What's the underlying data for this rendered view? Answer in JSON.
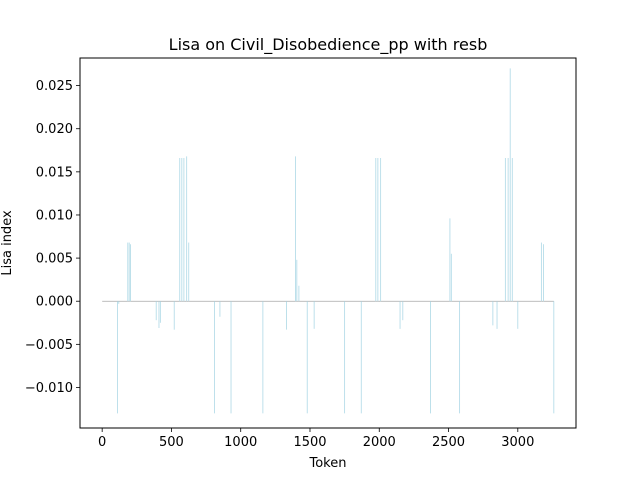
{
  "chart_data": {
    "type": "bar",
    "title": "Lisa on Civil_Disobedience_pp with resb",
    "xlabel": "Token",
    "ylabel": "Lisa index",
    "xlim": [
      -160,
      3420
    ],
    "ylim": [
      -0.0147,
      0.0282
    ],
    "xticks": [
      0,
      500,
      1000,
      1500,
      2000,
      2500,
      3000
    ],
    "xtick_labels": [
      "0",
      "500",
      "1000",
      "1500",
      "2000",
      "2500",
      "3000"
    ],
    "yticks": [
      -0.01,
      -0.005,
      0.0,
      0.005,
      0.01,
      0.015,
      0.02,
      0.025
    ],
    "ytick_labels": [
      "−0.010",
      "−0.005",
      "0.000",
      "0.005",
      "0.010",
      "0.015",
      "0.020",
      "0.025"
    ],
    "grid": false,
    "bar_color": "#add8e6",
    "baseline_color": "#a8a8a8",
    "points": [
      [
        110,
        -0.013
      ],
      [
        120,
        -0.0003
      ],
      [
        185,
        0.0068
      ],
      [
        195,
        0.0068
      ],
      [
        205,
        0.0066
      ],
      [
        390,
        -0.0022
      ],
      [
        410,
        -0.0031
      ],
      [
        420,
        -0.0025
      ],
      [
        520,
        -0.0033
      ],
      [
        560,
        0.0166
      ],
      [
        575,
        0.0166
      ],
      [
        590,
        0.0166
      ],
      [
        610,
        0.0168
      ],
      [
        625,
        0.0068
      ],
      [
        810,
        -0.013
      ],
      [
        850,
        -0.0018
      ],
      [
        930,
        -0.013
      ],
      [
        1160,
        -0.013
      ],
      [
        1330,
        -0.0033
      ],
      [
        1395,
        0.0168
      ],
      [
        1405,
        0.0048
      ],
      [
        1420,
        0.0018
      ],
      [
        1480,
        -0.013
      ],
      [
        1530,
        -0.0032
      ],
      [
        1750,
        -0.013
      ],
      [
        1870,
        -0.013
      ],
      [
        1975,
        0.0166
      ],
      [
        1990,
        0.0166
      ],
      [
        2010,
        0.0166
      ],
      [
        2150,
        -0.0032
      ],
      [
        2170,
        -0.0022
      ],
      [
        2370,
        -0.013
      ],
      [
        2510,
        0.0096
      ],
      [
        2520,
        0.0055
      ],
      [
        2580,
        -0.013
      ],
      [
        2820,
        -0.0028
      ],
      [
        2850,
        -0.0032
      ],
      [
        2910,
        0.0166
      ],
      [
        2930,
        0.0166
      ],
      [
        2945,
        0.027
      ],
      [
        2960,
        0.0166
      ],
      [
        3000,
        -0.0032
      ],
      [
        3170,
        0.0068
      ],
      [
        3185,
        0.0066
      ],
      [
        3260,
        -0.013
      ]
    ]
  }
}
